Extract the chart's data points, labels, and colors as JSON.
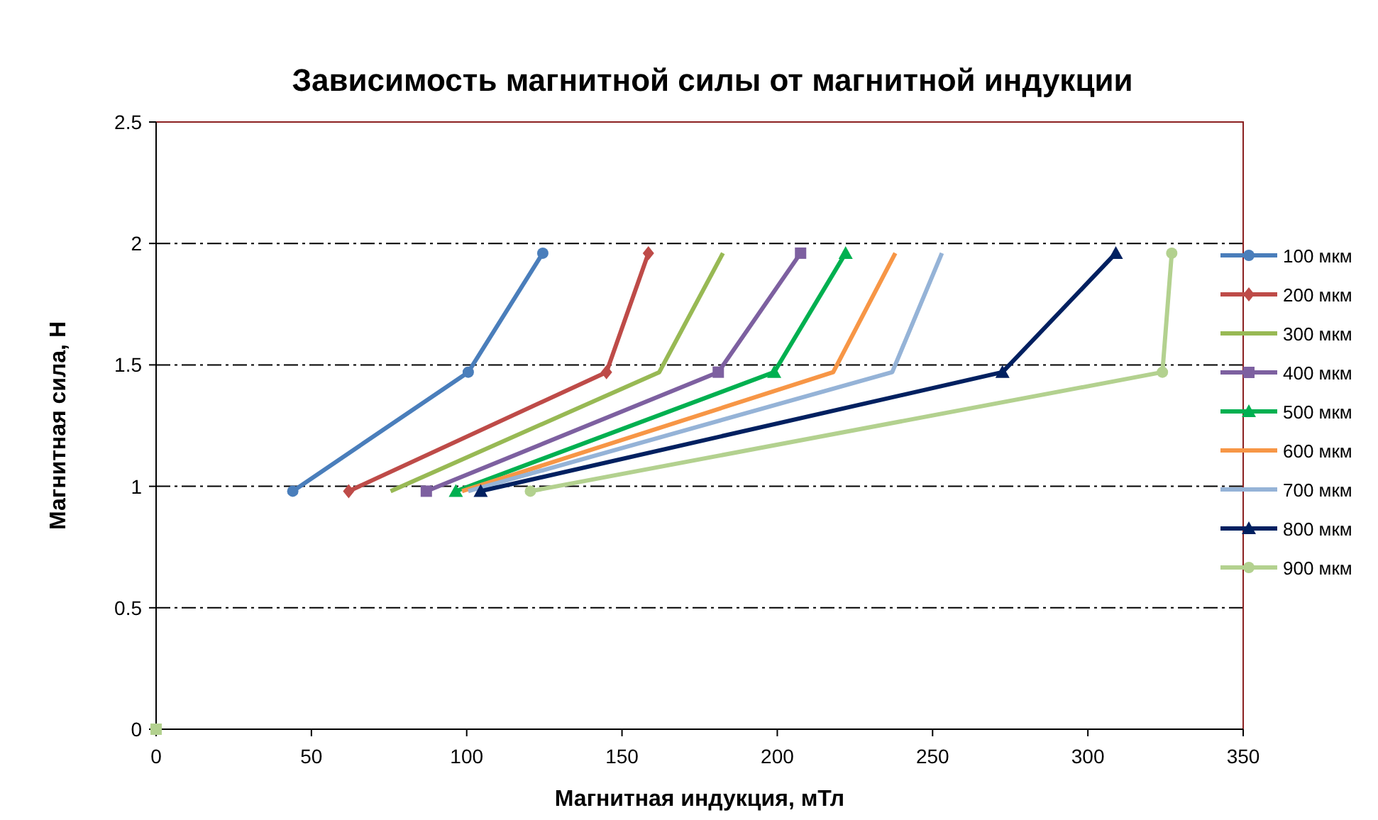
{
  "chart_data": {
    "type": "line",
    "title": "Зависимость магнитной силы от магнитной индукции",
    "xlabel": "Магнитная индукция, мТл",
    "ylabel": "Магнитная сила, Н",
    "xlim": [
      0,
      350
    ],
    "xticks": [
      0,
      50,
      100,
      150,
      200,
      250,
      300,
      350
    ],
    "ylim": [
      0,
      2.5
    ],
    "yticks": [
      0,
      0.5,
      1,
      1.5,
      2,
      2.5
    ],
    "grid": "y",
    "legend": "right",
    "series": [
      {
        "name": "100 мкм",
        "color": "#4a7ebb",
        "marker": "circle",
        "x": [
          44,
          100.5,
          124.5
        ],
        "values": [
          0.98,
          1.47,
          1.96
        ]
      },
      {
        "name": "200 мкм",
        "color": "#be4b48",
        "marker": "diamond",
        "x": [
          62,
          145,
          158.5
        ],
        "values": [
          0.98,
          1.47,
          1.96
        ]
      },
      {
        "name": "300 мкм",
        "color": "#98b954",
        "marker": "none",
        "x": [
          75.5,
          162,
          182.5
        ],
        "values": [
          0.98,
          1.47,
          1.96
        ]
      },
      {
        "name": "400 мкм",
        "color": "#7d60a0",
        "marker": "square",
        "x": [
          87,
          181,
          207.5
        ],
        "values": [
          0.98,
          1.47,
          1.96
        ]
      },
      {
        "name": "500 мкм",
        "color": "#00b050",
        "marker": "triangle",
        "x": [
          96.5,
          199,
          222
        ],
        "values": [
          0.98,
          1.47,
          1.96
        ]
      },
      {
        "name": "600 мкм",
        "color": "#f79646",
        "marker": "none",
        "x": [
          98.5,
          218,
          238
        ],
        "values": [
          0.98,
          1.47,
          1.96
        ]
      },
      {
        "name": "700 мкм",
        "color": "#95b3d7",
        "marker": "none",
        "x": [
          100.5,
          237,
          253
        ],
        "values": [
          0.98,
          1.47,
          1.96
        ]
      },
      {
        "name": "800 мкм",
        "color": "#002060",
        "marker": "triangle",
        "x": [
          104.5,
          272.5,
          309
        ],
        "values": [
          0.98,
          1.47,
          1.96
        ]
      },
      {
        "name": "900 мкм",
        "color": "#b3d18f",
        "marker": "circle",
        "x": [
          120.5,
          324,
          327
        ],
        "values": [
          0.98,
          1.47,
          1.96
        ]
      },
      {
        "type": "scatter",
        "color": "#b3d18f",
        "marker": "square",
        "x": [
          0
        ],
        "values": [
          0
        ]
      }
    ]
  }
}
